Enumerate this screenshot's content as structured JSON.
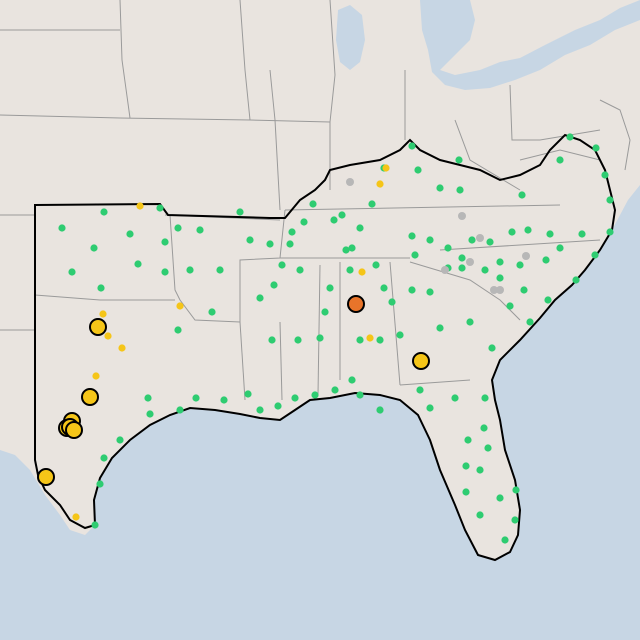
{
  "map": {
    "colors": {
      "land": "#e9e4df",
      "water": "#c7d6e4",
      "state_border": "#9a9a9a",
      "region_outline": "#000000",
      "marker_green": "#2ecc71",
      "marker_yellow": "#f5c518",
      "marker_orange": "#e8742a",
      "marker_gray": "#b7b7b7"
    },
    "legend_visible": false,
    "marker_categories": [
      "green",
      "yellow",
      "orange",
      "gray"
    ]
  }
}
